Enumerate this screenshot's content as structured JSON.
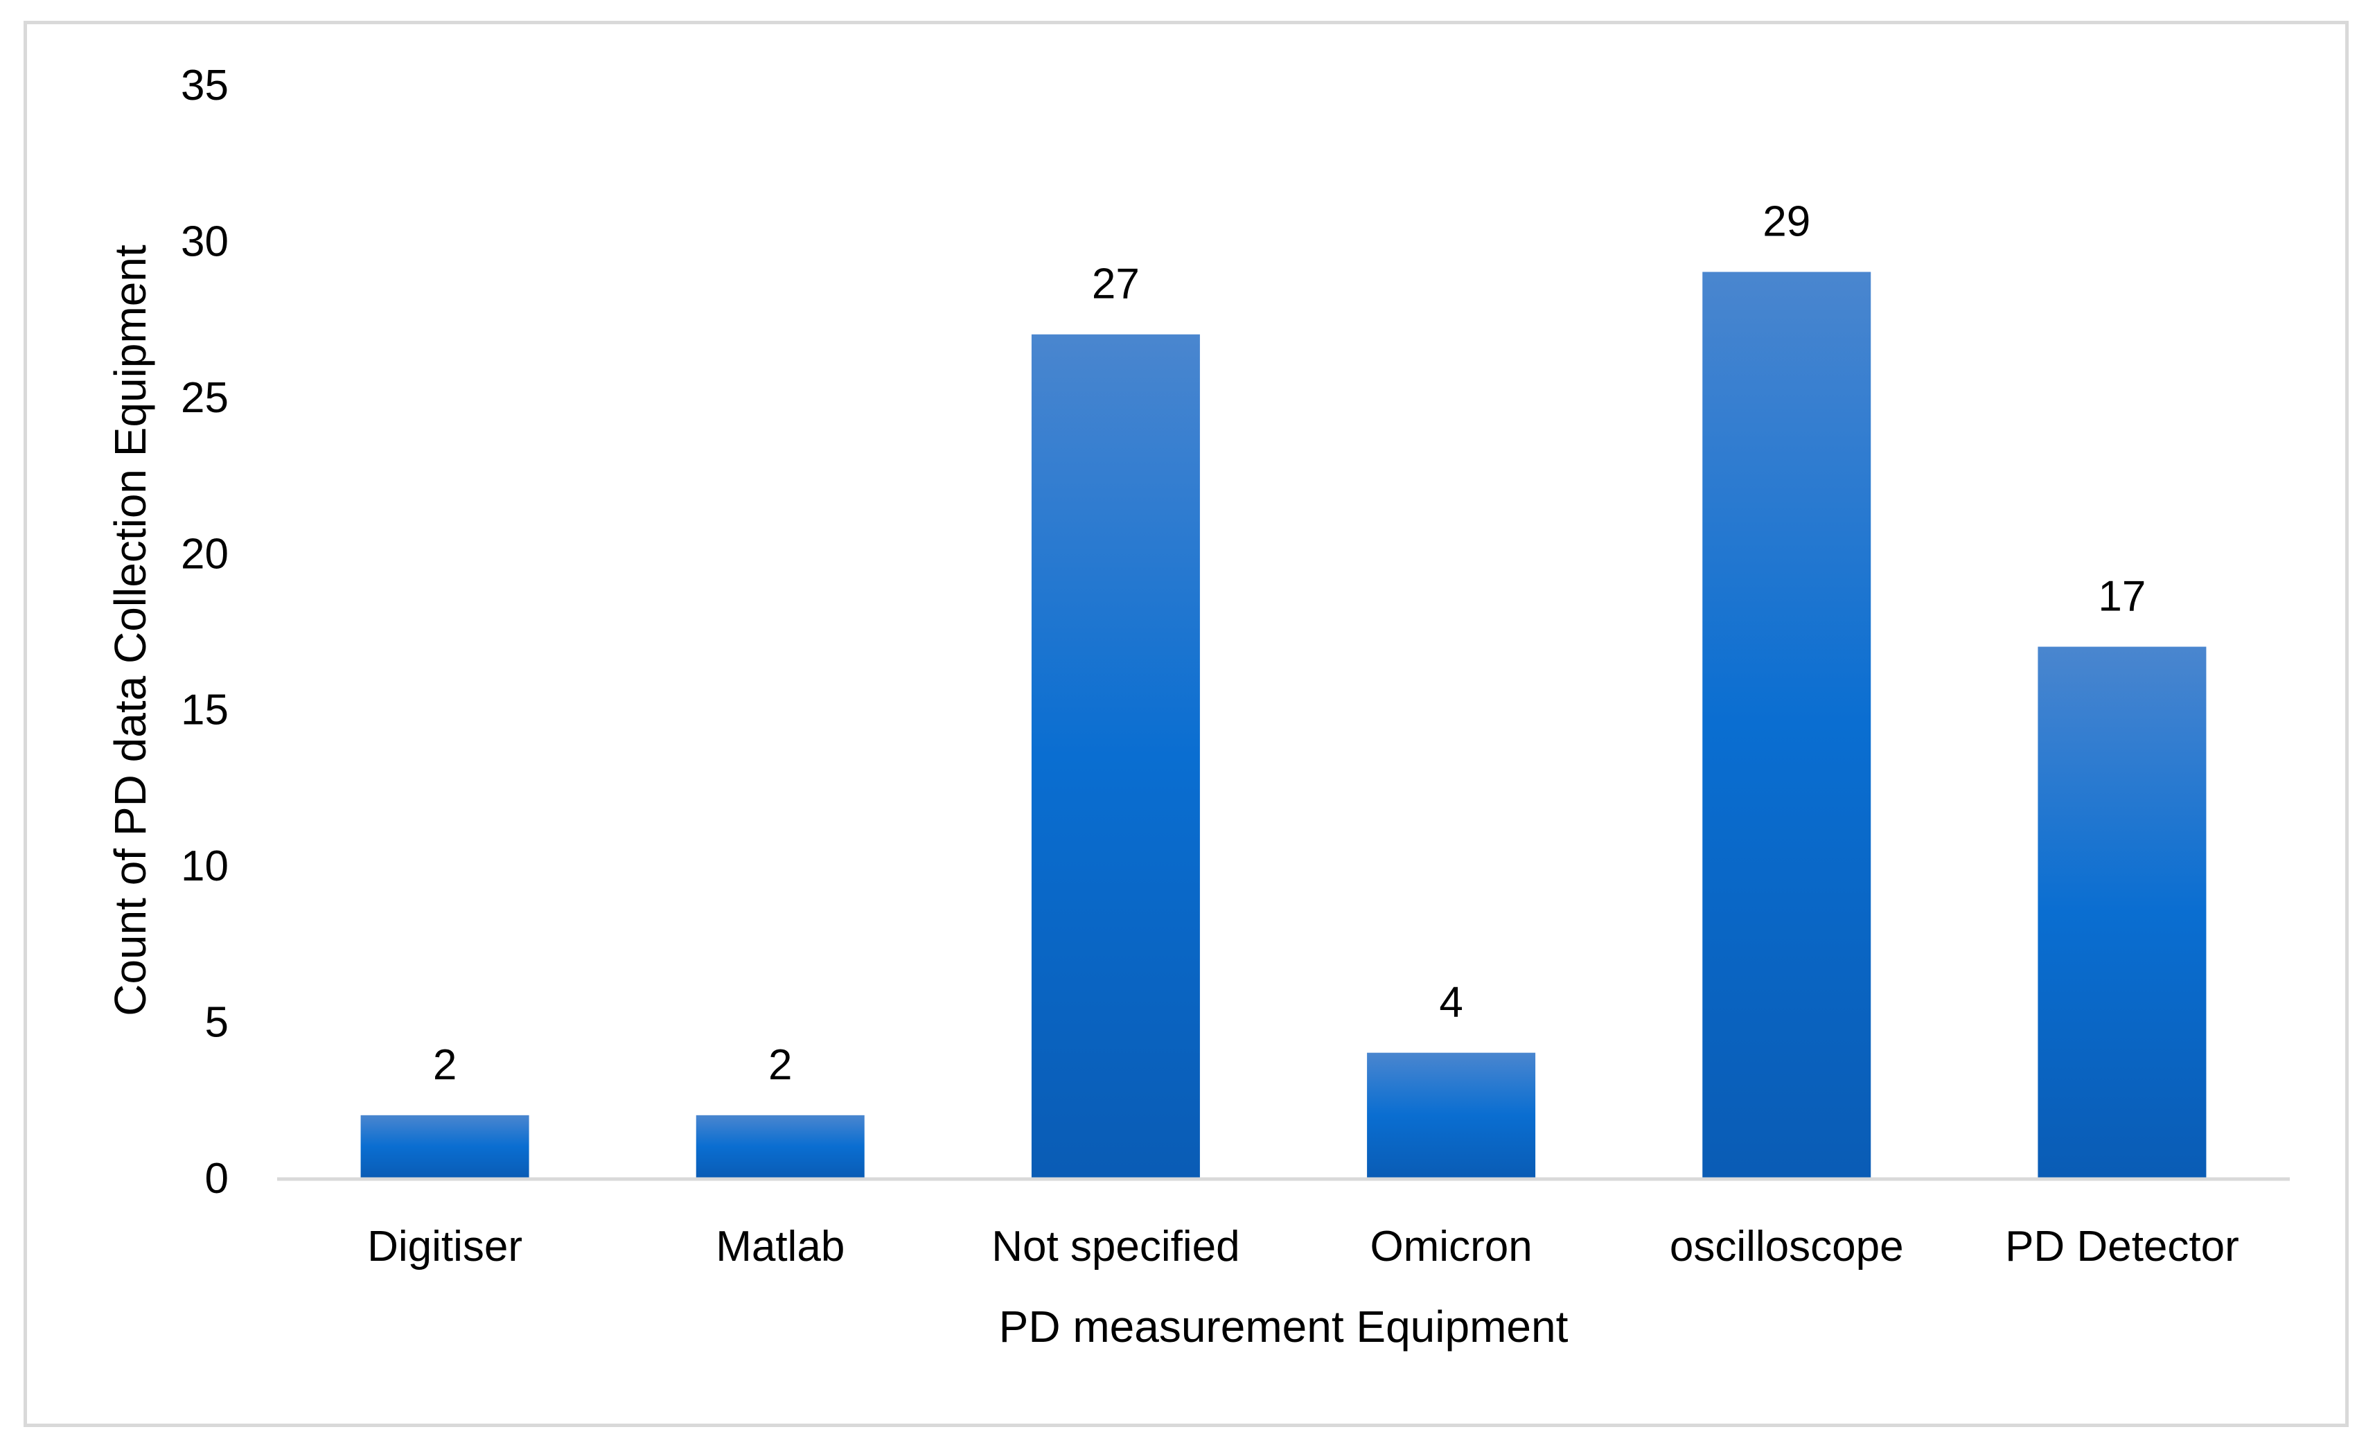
{
  "chart_data": {
    "type": "bar",
    "title": "",
    "xlabel": "PD measurement Equipment",
    "ylabel": "Count of PD data Collection Equipment",
    "categories": [
      "Digitiser",
      "Matlab",
      "Not specified",
      "Omicron",
      "oscilloscope",
      "PD Detector"
    ],
    "values": [
      2,
      2,
      27,
      4,
      29,
      17
    ],
    "data_labels": [
      "2",
      "2",
      "27",
      "4",
      "29",
      "17"
    ],
    "ylim": [
      0,
      35
    ],
    "yticks": [
      "0",
      "5",
      "10",
      "15",
      "20",
      "25",
      "30",
      "35"
    ],
    "grid": false,
    "legend": "none",
    "colors": {
      "bar_top": "#4a86cf",
      "bar_mid": "#0a6ed1",
      "bar_bottom": "#0a5cb5",
      "axis": "#d9d9d9",
      "frame": "#d9d9d9"
    }
  }
}
